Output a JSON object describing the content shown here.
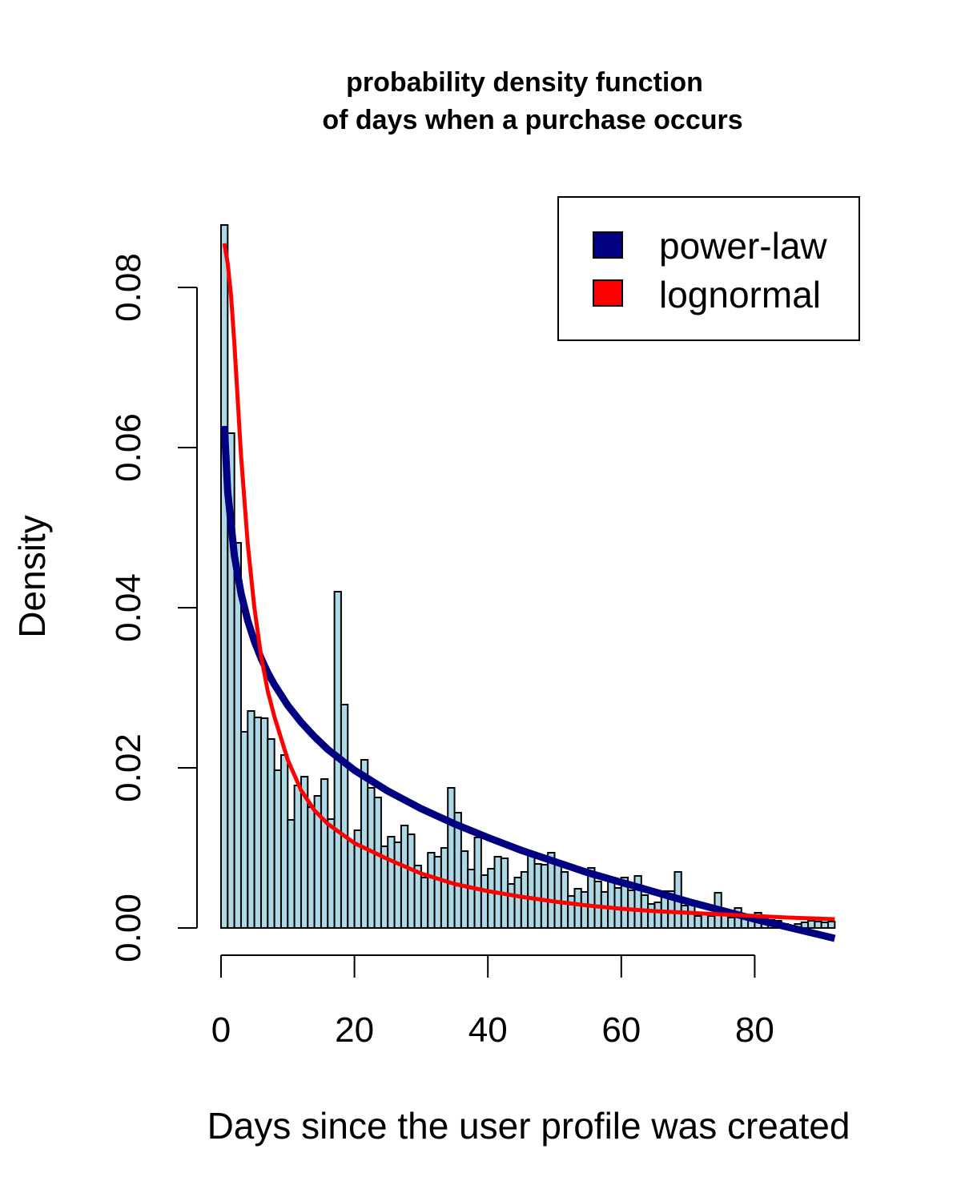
{
  "chart_data": {
    "type": "bar",
    "title_lines": [
      "probability density function",
      "of days when a purchase occurs"
    ],
    "xlabel": "Days since the user profile was created",
    "ylabel": "Density",
    "xlim": [
      0,
      92
    ],
    "ylim": [
      0,
      0.09
    ],
    "x_ticks": [
      0,
      20,
      40,
      60,
      80
    ],
    "x_tick_labels": [
      "0",
      "20",
      "40",
      "60",
      "80"
    ],
    "y_ticks": [
      0,
      0.02,
      0.04,
      0.06,
      0.08
    ],
    "y_tick_labels": [
      "0.00",
      "0.02",
      "0.04",
      "0.06",
      "0.08"
    ],
    "bin_width": 1,
    "bar_fill": "#add8e6",
    "bar_stroke": "#000000",
    "histogram": [
      0.0878,
      0.0618,
      0.0481,
      0.0245,
      0.0271,
      0.0263,
      0.0262,
      0.0236,
      0.0197,
      0.0216,
      0.0135,
      0.0178,
      0.0189,
      0.0151,
      0.0165,
      0.0186,
      0.0136,
      0.042,
      0.0279,
      0.0109,
      0.0122,
      0.021,
      0.0175,
      0.0163,
      0.0102,
      0.0114,
      0.0107,
      0.0128,
      0.0117,
      0.0078,
      0.0063,
      0.0094,
      0.0089,
      0.01,
      0.0175,
      0.0144,
      0.0096,
      0.0073,
      0.0113,
      0.0066,
      0.0074,
      0.0089,
      0.0087,
      0.0055,
      0.0063,
      0.007,
      0.0092,
      0.008,
      0.0079,
      0.0094,
      0.008,
      0.007,
      0.004,
      0.0049,
      0.0045,
      0.0075,
      0.0058,
      0.0045,
      0.0063,
      0.005,
      0.0063,
      0.0047,
      0.0065,
      0.0041,
      0.003,
      0.0032,
      0.0046,
      0.0046,
      0.007,
      0.0028,
      0.0032,
      0.0015,
      0.0018,
      0.0015,
      0.0044,
      0.0017,
      0.0013,
      0.0025,
      0.0017,
      0.001,
      0.0019,
      0.0013,
      0.001,
      0.0009,
      0.0005,
      0.0003,
      0.0005,
      0.0007,
      0.0009,
      0.0008,
      0.0007,
      0.0008
    ],
    "series": [
      {
        "name": "power-law",
        "color": "#000080",
        "line_type": "line",
        "points": [
          [
            0.5,
            0.0627
          ],
          [
            1,
            0.0545
          ],
          [
            2,
            0.0465
          ],
          [
            3,
            0.0418
          ],
          [
            4,
            0.0384
          ],
          [
            5,
            0.0358
          ],
          [
            6,
            0.0337
          ],
          [
            7,
            0.0319
          ],
          [
            8,
            0.0304
          ],
          [
            10,
            0.0278
          ],
          [
            12,
            0.0257
          ],
          [
            14,
            0.0239
          ],
          [
            16,
            0.0223
          ],
          [
            18,
            0.021
          ],
          [
            20,
            0.0197
          ],
          [
            25,
            0.0171
          ],
          [
            30,
            0.0149
          ],
          [
            35,
            0.013
          ],
          [
            40,
            0.0113
          ],
          [
            45,
            0.0097
          ],
          [
            50,
            0.0083
          ],
          [
            55,
            0.0069
          ],
          [
            60,
            0.0057
          ],
          [
            65,
            0.0045
          ],
          [
            70,
            0.0033
          ],
          [
            75,
            0.0022
          ],
          [
            80,
            0.0011
          ],
          [
            85,
            0.0001
          ],
          [
            92,
            -0.0013
          ]
        ]
      },
      {
        "name": "lognormal",
        "color": "#ff0000",
        "line_type": "line",
        "points": [
          [
            0.5,
            0.0855
          ],
          [
            1,
            0.083
          ],
          [
            1.5,
            0.079
          ],
          [
            2,
            0.073
          ],
          [
            3,
            0.059
          ],
          [
            4,
            0.048
          ],
          [
            5,
            0.04
          ],
          [
            6,
            0.034
          ],
          [
            7,
            0.0296
          ],
          [
            8,
            0.0264
          ],
          [
            10,
            0.021
          ],
          [
            12,
            0.0172
          ],
          [
            14,
            0.0147
          ],
          [
            16,
            0.013
          ],
          [
            18,
            0.0118
          ],
          [
            20,
            0.0106
          ],
          [
            25,
            0.0086
          ],
          [
            30,
            0.0068
          ],
          [
            35,
            0.0055
          ],
          [
            40,
            0.0046
          ],
          [
            45,
            0.0039
          ],
          [
            50,
            0.0033
          ],
          [
            55,
            0.0028
          ],
          [
            60,
            0.0024
          ],
          [
            65,
            0.0021
          ],
          [
            70,
            0.0019
          ],
          [
            75,
            0.0017
          ],
          [
            80,
            0.0015
          ],
          [
            85,
            0.0013
          ],
          [
            92,
            0.0011
          ]
        ]
      }
    ],
    "legend": {
      "position": "top-right",
      "entries": [
        {
          "label": "power-law",
          "color": "#000080"
        },
        {
          "label": "lognormal",
          "color": "#ff0000"
        }
      ]
    },
    "grid": false
  }
}
